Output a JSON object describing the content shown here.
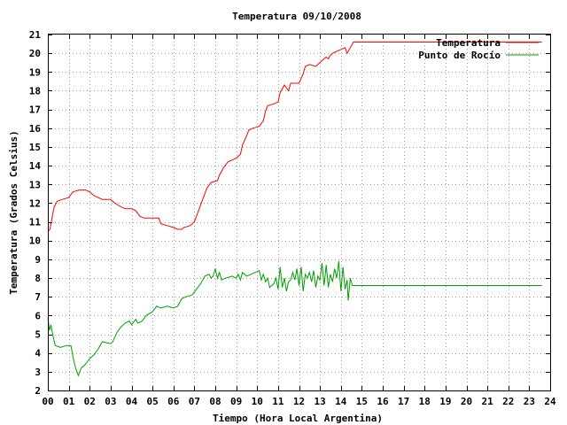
{
  "chart_data": {
    "type": "line",
    "title": "Temperatura 09/10/2008",
    "xlabel": "Tiempo (Hora Local Argentina)",
    "ylabel": "Temperatura (Grados Celsius)",
    "xlim": [
      0,
      24
    ],
    "ylim": [
      2,
      21
    ],
    "x_ticks": [
      "00",
      "01",
      "02",
      "03",
      "04",
      "05",
      "06",
      "07",
      "08",
      "09",
      "10",
      "11",
      "12",
      "13",
      "14",
      "15",
      "16",
      "17",
      "18",
      "19",
      "20",
      "21",
      "22",
      "23",
      "24"
    ],
    "y_ticks": [
      2,
      3,
      4,
      5,
      6,
      7,
      8,
      9,
      10,
      11,
      12,
      13,
      14,
      15,
      16,
      17,
      18,
      19,
      20,
      21
    ],
    "grid": true,
    "legend_position": "top-right",
    "series": [
      {
        "name": "Temperatura",
        "color": "#ff0000",
        "points": [
          [
            0.0,
            10.5
          ],
          [
            0.1,
            10.6
          ],
          [
            0.2,
            11.2
          ],
          [
            0.3,
            11.8
          ],
          [
            0.45,
            12.1
          ],
          [
            0.7,
            12.2
          ],
          [
            1.0,
            12.3
          ],
          [
            1.2,
            12.6
          ],
          [
            1.5,
            12.7
          ],
          [
            1.8,
            12.7
          ],
          [
            2.0,
            12.6
          ],
          [
            2.2,
            12.4
          ],
          [
            2.4,
            12.3
          ],
          [
            2.6,
            12.2
          ],
          [
            3.0,
            12.2
          ],
          [
            3.2,
            12.0
          ],
          [
            3.5,
            11.8
          ],
          [
            3.7,
            11.7
          ],
          [
            4.0,
            11.7
          ],
          [
            4.2,
            11.6
          ],
          [
            4.4,
            11.3
          ],
          [
            4.6,
            11.2
          ],
          [
            5.0,
            11.2
          ],
          [
            5.3,
            11.2
          ],
          [
            5.4,
            10.9
          ],
          [
            5.7,
            10.8
          ],
          [
            6.0,
            10.7
          ],
          [
            6.2,
            10.6
          ],
          [
            6.4,
            10.6
          ],
          [
            6.5,
            10.7
          ],
          [
            6.8,
            10.8
          ],
          [
            7.0,
            11.0
          ],
          [
            7.2,
            11.6
          ],
          [
            7.4,
            12.2
          ],
          [
            7.6,
            12.8
          ],
          [
            7.8,
            13.1
          ],
          [
            8.1,
            13.2
          ],
          [
            8.2,
            13.5
          ],
          [
            8.4,
            13.9
          ],
          [
            8.6,
            14.2
          ],
          [
            8.8,
            14.3
          ],
          [
            9.0,
            14.4
          ],
          [
            9.2,
            14.6
          ],
          [
            9.3,
            15.1
          ],
          [
            9.5,
            15.6
          ],
          [
            9.6,
            15.9
          ],
          [
            9.8,
            16.0
          ],
          [
            10.1,
            16.1
          ],
          [
            10.3,
            16.4
          ],
          [
            10.4,
            16.9
          ],
          [
            10.5,
            17.2
          ],
          [
            10.8,
            17.3
          ],
          [
            11.0,
            17.4
          ],
          [
            11.1,
            17.9
          ],
          [
            11.3,
            18.3
          ],
          [
            11.5,
            18.0
          ],
          [
            11.6,
            18.4
          ],
          [
            12.0,
            18.4
          ],
          [
            12.2,
            18.9
          ],
          [
            12.3,
            19.3
          ],
          [
            12.5,
            19.4
          ],
          [
            12.8,
            19.3
          ],
          [
            13.0,
            19.5
          ],
          [
            13.2,
            19.7
          ],
          [
            13.3,
            19.8
          ],
          [
            13.4,
            19.7
          ],
          [
            13.5,
            19.9
          ],
          [
            13.6,
            20.0
          ],
          [
            13.8,
            20.1
          ],
          [
            14.0,
            20.2
          ],
          [
            14.2,
            20.3
          ],
          [
            14.3,
            20.0
          ],
          [
            14.5,
            20.4
          ],
          [
            14.6,
            20.6
          ],
          [
            15.0,
            20.6
          ],
          [
            16.0,
            20.6
          ],
          [
            18.0,
            20.6
          ],
          [
            20.0,
            20.6
          ],
          [
            22.0,
            20.6
          ],
          [
            23.6,
            20.6
          ]
        ]
      },
      {
        "name": "Punto de Rocío",
        "color": "#00a000",
        "points": [
          [
            0.0,
            5.9
          ],
          [
            0.08,
            5.2
          ],
          [
            0.15,
            5.5
          ],
          [
            0.25,
            4.9
          ],
          [
            0.35,
            4.4
          ],
          [
            0.6,
            4.3
          ],
          [
            0.9,
            4.4
          ],
          [
            1.1,
            4.4
          ],
          [
            1.2,
            3.8
          ],
          [
            1.3,
            3.3
          ],
          [
            1.45,
            2.8
          ],
          [
            1.6,
            3.2
          ],
          [
            1.8,
            3.4
          ],
          [
            2.0,
            3.7
          ],
          [
            2.2,
            3.9
          ],
          [
            2.4,
            4.2
          ],
          [
            2.6,
            4.6
          ],
          [
            3.0,
            4.5
          ],
          [
            3.1,
            4.6
          ],
          [
            3.3,
            5.1
          ],
          [
            3.5,
            5.4
          ],
          [
            3.7,
            5.6
          ],
          [
            3.9,
            5.7
          ],
          [
            4.0,
            5.5
          ],
          [
            4.2,
            5.8
          ],
          [
            4.3,
            5.6
          ],
          [
            4.5,
            5.7
          ],
          [
            4.7,
            6.0
          ],
          [
            5.0,
            6.2
          ],
          [
            5.2,
            6.5
          ],
          [
            5.4,
            6.4
          ],
          [
            5.7,
            6.5
          ],
          [
            6.0,
            6.4
          ],
          [
            6.2,
            6.5
          ],
          [
            6.4,
            6.9
          ],
          [
            6.6,
            7.0
          ],
          [
            6.9,
            7.1
          ],
          [
            7.1,
            7.4
          ],
          [
            7.3,
            7.7
          ],
          [
            7.5,
            8.1
          ],
          [
            7.7,
            8.2
          ],
          [
            7.8,
            8.0
          ],
          [
            7.9,
            8.1
          ],
          [
            8.0,
            8.5
          ],
          [
            8.1,
            8.0
          ],
          [
            8.2,
            8.3
          ],
          [
            8.3,
            7.9
          ],
          [
            8.5,
            8.0
          ],
          [
            8.8,
            8.1
          ],
          [
            9.0,
            8.0
          ],
          [
            9.1,
            8.2
          ],
          [
            9.2,
            7.9
          ],
          [
            9.3,
            8.3
          ],
          [
            9.5,
            8.1
          ],
          [
            9.7,
            8.2
          ],
          [
            9.9,
            8.3
          ],
          [
            10.1,
            8.4
          ],
          [
            10.2,
            7.9
          ],
          [
            10.3,
            8.2
          ],
          [
            10.4,
            7.8
          ],
          [
            10.5,
            8.0
          ],
          [
            10.6,
            7.5
          ],
          [
            10.8,
            7.7
          ],
          [
            10.9,
            8.0
          ],
          [
            11.0,
            7.4
          ],
          [
            11.1,
            8.6
          ],
          [
            11.2,
            7.5
          ],
          [
            11.3,
            8.0
          ],
          [
            11.4,
            7.3
          ],
          [
            11.5,
            7.8
          ],
          [
            11.6,
            7.9
          ],
          [
            11.7,
            8.3
          ],
          [
            11.8,
            7.9
          ],
          [
            11.9,
            8.5
          ],
          [
            12.0,
            7.6
          ],
          [
            12.1,
            8.6
          ],
          [
            12.2,
            7.3
          ],
          [
            12.3,
            8.2
          ],
          [
            12.4,
            8.0
          ],
          [
            12.5,
            8.3
          ],
          [
            12.6,
            7.8
          ],
          [
            12.7,
            8.4
          ],
          [
            12.8,
            7.5
          ],
          [
            12.9,
            8.1
          ],
          [
            13.0,
            7.9
          ],
          [
            13.1,
            8.8
          ],
          [
            13.2,
            7.6
          ],
          [
            13.3,
            8.7
          ],
          [
            13.4,
            7.5
          ],
          [
            13.5,
            8.2
          ],
          [
            13.6,
            7.8
          ],
          [
            13.7,
            8.5
          ],
          [
            13.8,
            8.0
          ],
          [
            13.9,
            8.9
          ],
          [
            14.0,
            7.3
          ],
          [
            14.1,
            8.6
          ],
          [
            14.2,
            7.4
          ],
          [
            14.3,
            7.9
          ],
          [
            14.35,
            6.8
          ],
          [
            14.45,
            8.0
          ],
          [
            14.55,
            7.6
          ],
          [
            15.0,
            7.6
          ],
          [
            16.0,
            7.6
          ],
          [
            18.0,
            7.6
          ],
          [
            20.0,
            7.6
          ],
          [
            22.0,
            7.6
          ],
          [
            23.6,
            7.6
          ]
        ]
      }
    ]
  }
}
